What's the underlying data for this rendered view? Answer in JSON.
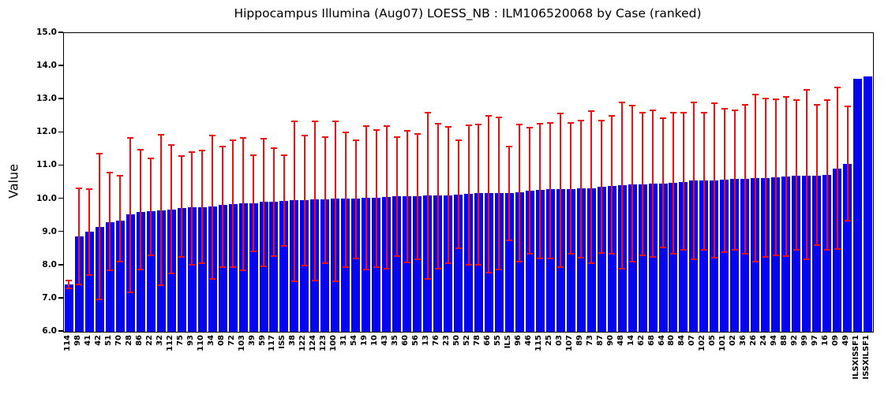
{
  "title": "Hippocampus Illumina (Aug07) LOESS_NB : ILM106520068 by Case (ranked)",
  "colors": {
    "bar": "#0606ee",
    "error": "#f01010",
    "axis": "#000000",
    "background": "#ffffff"
  },
  "chart_data": {
    "type": "bar",
    "title": "Hippocampus Illumina (Aug07) LOESS_NB : ILM106520068 by Case (ranked)",
    "xlabel": "",
    "ylabel": "Value",
    "ylim": [
      6.0,
      15.0
    ],
    "y_ticks": [
      "15.0",
      "14.0",
      "13.0",
      "12.0",
      "11.0",
      "10.0",
      "9.0",
      "8.0",
      "7.0",
      "6.0"
    ],
    "grid": false,
    "legend": null,
    "bar_color": "#0606ee",
    "error_bar_color": "#f01010",
    "categories": [
      "114",
      "98",
      "41",
      "42",
      "51",
      "70",
      "28",
      "86",
      "22",
      "32",
      "112",
      "75",
      "93",
      "110",
      "34",
      "08",
      "72",
      "103",
      "39",
      "59",
      "117",
      "ISS",
      "38",
      "122",
      "124",
      "123",
      "100",
      "31",
      "54",
      "19",
      "10",
      "43",
      "35",
      "60",
      "56",
      "13",
      "76",
      "23",
      "50",
      "52",
      "78",
      "66",
      "55",
      "ILS",
      "96",
      "46",
      "115",
      "25",
      "03",
      "107",
      "89",
      "73",
      "87",
      "90",
      "48",
      "14",
      "62",
      "68",
      "64",
      "80",
      "84",
      "07",
      "102",
      "05",
      "101",
      "02",
      "36",
      "26",
      "24",
      "94",
      "88",
      "92",
      "99",
      "97",
      "16",
      "09",
      "49",
      "ILSXISSF1",
      "ISSXILSF1"
    ],
    "values": [
      7.42,
      8.87,
      9.02,
      9.15,
      9.3,
      9.35,
      9.53,
      9.61,
      9.64,
      9.66,
      9.68,
      9.74,
      9.76,
      9.76,
      9.77,
      9.82,
      9.85,
      9.86,
      9.88,
      9.92,
      9.92,
      9.95,
      9.96,
      9.96,
      9.99,
      9.99,
      10.01,
      10.01,
      10.02,
      10.03,
      10.04,
      10.07,
      10.09,
      10.09,
      10.09,
      10.1,
      10.1,
      10.11,
      10.14,
      10.16,
      10.17,
      10.17,
      10.18,
      10.19,
      10.2,
      10.24,
      10.27,
      10.3,
      10.3,
      10.31,
      10.33,
      10.33,
      10.37,
      10.39,
      10.42,
      10.45,
      10.45,
      10.47,
      10.47,
      10.49,
      10.51,
      10.55,
      10.57,
      10.57,
      10.59,
      10.61,
      10.61,
      10.64,
      10.64,
      10.65,
      10.68,
      10.71,
      10.71,
      10.71,
      10.73,
      10.91,
      11.07,
      13.63,
      13.69
    ],
    "error_low": [
      7.3,
      7.42,
      7.71,
      6.98,
      7.86,
      8.11,
      7.18,
      7.87,
      8.3,
      7.4,
      7.75,
      8.26,
      8.03,
      8.06,
      7.59,
      7.95,
      7.94,
      7.86,
      8.42,
      7.96,
      8.28,
      8.58,
      7.53,
      7.99,
      7.55,
      8.07,
      7.53,
      7.95,
      8.22,
      7.87,
      7.95,
      7.9,
      8.27,
      8.08,
      8.18,
      7.58,
      7.9,
      8.06,
      8.51,
      8.03,
      8.03,
      7.79,
      7.87,
      8.76,
      8.11,
      8.34,
      8.22,
      8.22,
      7.95,
      8.34,
      8.24,
      8.07,
      8.38,
      8.35,
      7.91,
      8.11,
      8.31,
      8.26,
      8.55,
      8.35,
      8.47,
      8.18,
      8.47,
      8.23,
      8.39,
      8.47,
      8.34,
      8.11,
      8.26,
      8.31,
      8.27,
      8.47,
      8.18,
      8.62,
      8.47,
      8.5,
      9.34,
      null,
      null
    ],
    "error_high": [
      7.55,
      10.33,
      10.31,
      11.37,
      10.79,
      10.71,
      11.83,
      11.49,
      11.23,
      11.93,
      11.62,
      11.3,
      11.42,
      11.45,
      11.91,
      11.59,
      11.76,
      11.85,
      11.33,
      11.81,
      11.53,
      11.31,
      12.35,
      11.91,
      12.35,
      11.87,
      12.35,
      12.01,
      11.76,
      12.19,
      12.09,
      12.19,
      11.87,
      12.05,
      11.95,
      12.59,
      12.28,
      12.17,
      11.76,
      12.21,
      12.25,
      12.51,
      12.45,
      11.57,
      12.25,
      12.15,
      12.27,
      12.29,
      12.57,
      12.29,
      12.37,
      12.65,
      12.37,
      12.51,
      12.9,
      12.81,
      12.61,
      12.67,
      12.43,
      12.59,
      12.59,
      12.91,
      12.61,
      12.89,
      12.73,
      12.67,
      12.83,
      13.15,
      13.03,
      13.01,
      13.07,
      12.99,
      13.29,
      12.83,
      12.99,
      13.35,
      12.79,
      null,
      null
    ]
  }
}
